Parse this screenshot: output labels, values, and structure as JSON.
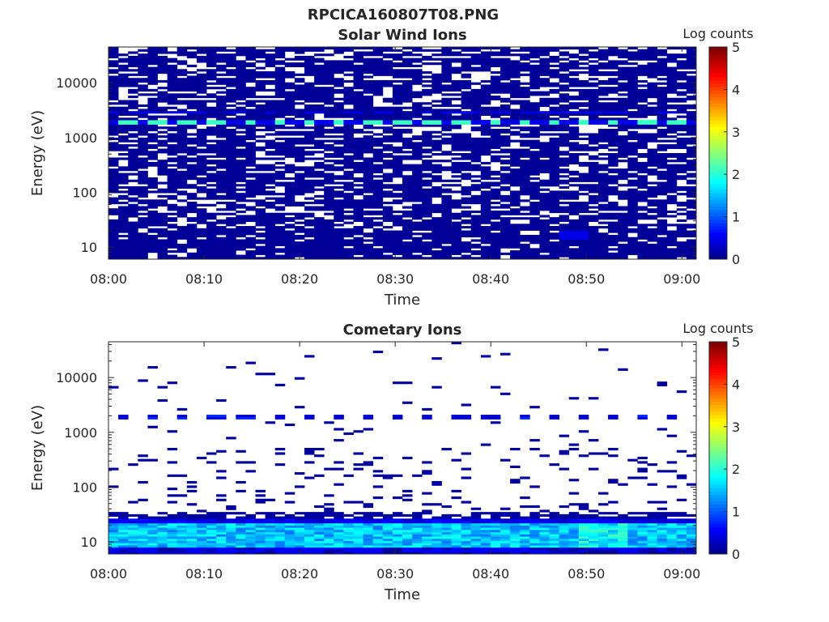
{
  "figure": {
    "title": "RPCICA160807T08.PNG"
  },
  "colormap": {
    "name": "jet",
    "stops": [
      "#00008f",
      "#0000ff",
      "#00ffff",
      "#ffff00",
      "#ff0000",
      "#800000"
    ]
  },
  "chart_data": [
    {
      "type": "heatmap",
      "title": "Solar Wind Ions",
      "xlabel": "Time",
      "ylabel": "Energy (eV)",
      "x_ticks": [
        "08:00",
        "08:10",
        "08:20",
        "08:30",
        "08:40",
        "08:50",
        "09:00"
      ],
      "x_range_minutes": [
        0,
        61.5
      ],
      "y_scale": "log",
      "y_ticks": [
        "10",
        "100",
        "1000",
        "10000"
      ],
      "y_range_eV": [
        6,
        45000
      ],
      "colorbar": {
        "label": "Log counts",
        "ticks": [
          "0",
          "1",
          "2",
          "3",
          "4",
          "5"
        ],
        "range": [
          0,
          5
        ]
      },
      "features": [
        {
          "energy_eV": 1900,
          "log_counts": 2.1,
          "description_pattern": "periodic",
          "period_minutes": 3.2
        },
        {
          "energy_eV": 2900,
          "log_counts": 0.5
        },
        {
          "energy_range_eV": [
            6,
            45000
          ],
          "log_counts": 0.1
        }
      ]
    },
    {
      "type": "heatmap",
      "title": "Cometary Ions",
      "xlabel": "Time",
      "ylabel": "Energy (eV)",
      "x_ticks": [
        "08:00",
        "08:10",
        "08:20",
        "08:30",
        "08:40",
        "08:50",
        "09:00"
      ],
      "x_range_minutes": [
        0,
        61.5
      ],
      "y_scale": "log",
      "y_ticks": [
        "10",
        "100",
        "1000",
        "10000"
      ],
      "y_range_eV": [
        6,
        45000
      ],
      "colorbar": {
        "label": "Log counts",
        "ticks": [
          "0",
          "1",
          "2",
          "3",
          "4",
          "5"
        ],
        "range": [
          0,
          5
        ]
      },
      "features": [
        {
          "energy_range_eV": [
            8,
            22
          ],
          "log_counts": 1.4
        },
        {
          "energy_range_eV": [
            22,
            35
          ],
          "log_counts": 0.3
        },
        {
          "energy_eV": 1900,
          "log_counts": 0.5
        },
        {
          "energy_range_eV": [
            40,
            400
          ],
          "log_counts": 0.1
        }
      ]
    }
  ]
}
